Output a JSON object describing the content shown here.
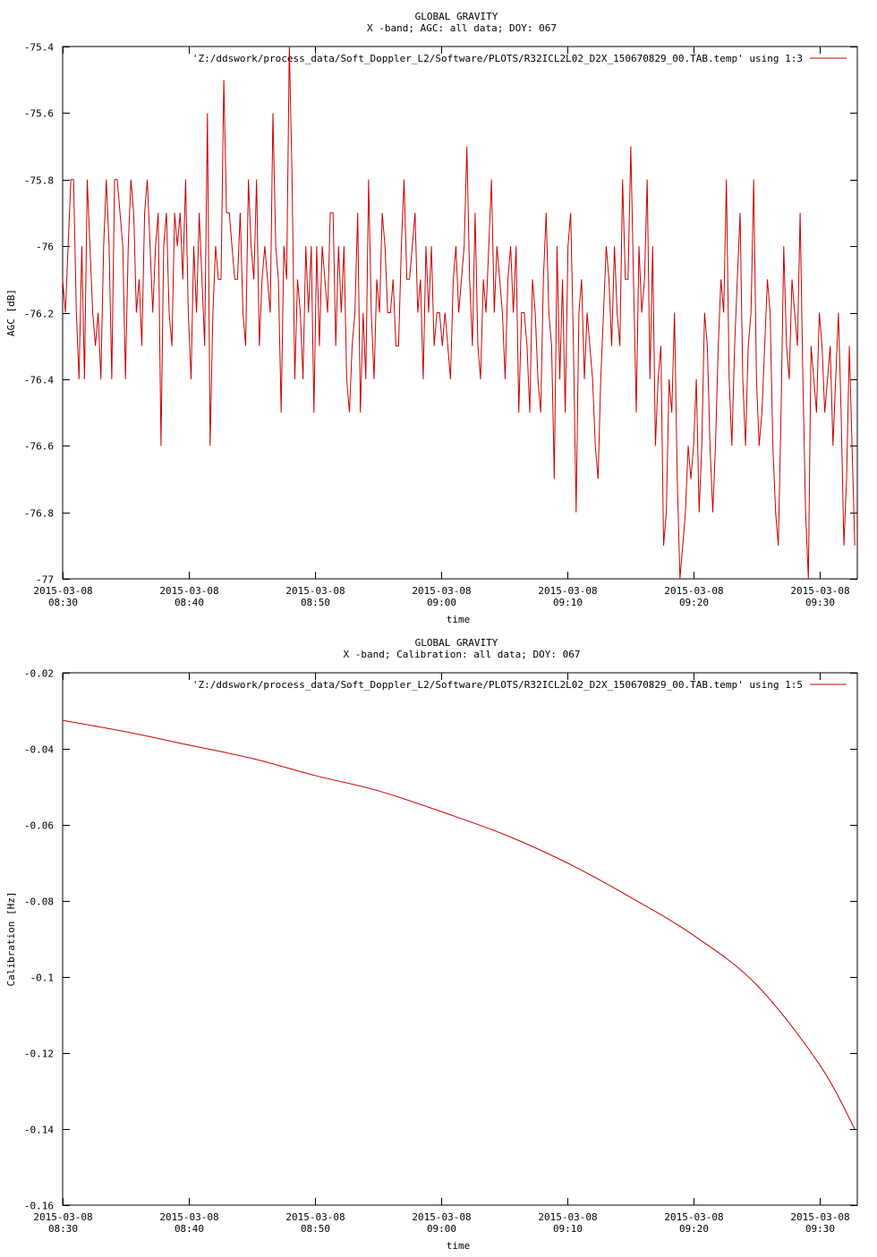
{
  "chart_data": [
    {
      "type": "line",
      "title": "GLOBAL GRAVITY",
      "subtitle": "X -band; AGC: all data; DOY: 067",
      "xlabel": "time",
      "ylabel": "AGC [dB]",
      "legend": "'Z:/ddswork/process_data/Soft_Doppler_L2/Software/PLOTS/R32ICL2L02_D2X_150670829_00.TAB.temp' using 1:3",
      "legend_position": "top-right",
      "line_color": "#cc0000",
      "xlim_minutes": [
        0,
        63
      ],
      "ylim": [
        -77,
        -75.4
      ],
      "yticks": [
        -75.4,
        -75.6,
        -75.8,
        -76,
        -76.2,
        -76.4,
        -76.6,
        -76.8,
        -77
      ],
      "ytick_labels": [
        "-75.4",
        "-75.6",
        "-75.8",
        "-76",
        "-76.2",
        "-76.4",
        "-76.6",
        "-76.8",
        "-77"
      ],
      "xtick_minutes": [
        0,
        10,
        20,
        30,
        40,
        50,
        60
      ],
      "xtick_labels": [
        [
          "2015-03-08",
          "08:30"
        ],
        [
          "2015-03-08",
          "08:40"
        ],
        [
          "2015-03-08",
          "08:50"
        ],
        [
          "2015-03-08",
          "09:00"
        ],
        [
          "2015-03-08",
          "09:10"
        ],
        [
          "2015-03-08",
          "09:20"
        ],
        [
          "2015-03-08",
          "09:30"
        ]
      ],
      "x_step_minutes": 0.1,
      "series": [
        {
          "values": [
            -76.1,
            -76.2,
            -76.0,
            -75.8,
            -75.8,
            -76.2,
            -76.4,
            -76.0,
            -76.4,
            -75.8,
            -76.0,
            -76.2,
            -76.3,
            -76.2,
            -76.4,
            -76.0,
            -75.8,
            -76.0,
            -76.4,
            -75.8,
            -75.8,
            -75.9,
            -76.0,
            -76.4,
            -76.0,
            -75.8,
            -75.9,
            -76.2,
            -76.1,
            -76.3,
            -75.9,
            -75.8,
            -76.0,
            -76.2,
            -76.0,
            -75.9,
            -76.6,
            -76.0,
            -75.9,
            -76.2,
            -76.3,
            -75.9,
            -76.0,
            -75.9,
            -76.1,
            -75.8,
            -76.2,
            -76.4,
            -76.0,
            -76.2,
            -75.9,
            -76.1,
            -76.3,
            -75.6,
            -76.6,
            -76.2,
            -76.0,
            -76.1,
            -76.1,
            -75.5,
            -75.9,
            -75.9,
            -76.0,
            -76.1,
            -76.1,
            -75.9,
            -76.2,
            -76.3,
            -75.8,
            -76.0,
            -76.1,
            -75.8,
            -76.3,
            -76.1,
            -76.0,
            -76.1,
            -76.2,
            -75.6,
            -76.0,
            -76.1,
            -76.5,
            -76.0,
            -76.1,
            -75.4,
            -75.8,
            -76.4,
            -76.1,
            -76.2,
            -76.4,
            -76.0,
            -76.2,
            -76.0,
            -76.5,
            -76.0,
            -76.3,
            -76.0,
            -76.1,
            -76.2,
            -75.9,
            -75.9,
            -76.3,
            -76.0,
            -76.2,
            -76.0,
            -76.4,
            -76.5,
            -76.3,
            -76.2,
            -75.9,
            -76.5,
            -76.2,
            -76.4,
            -75.8,
            -76.2,
            -76.4,
            -76.1,
            -76.2,
            -75.9,
            -76.0,
            -76.2,
            -76.2,
            -76.1,
            -76.3,
            -76.3,
            -76.0,
            -75.8,
            -76.1,
            -76.1,
            -76.0,
            -75.9,
            -76.2,
            -76.1,
            -76.4,
            -76.0,
            -76.2,
            -76.0,
            -76.3,
            -76.2,
            -76.2,
            -76.3,
            -76.2,
            -76.3,
            -76.4,
            -76.1,
            -76.0,
            -76.2,
            -76.1,
            -76.0,
            -75.7,
            -76.1,
            -76.3,
            -75.9,
            -76.3,
            -76.4,
            -76.1,
            -76.2,
            -76.0,
            -75.8,
            -76.2,
            -76.0,
            -76.1,
            -76.2,
            -76.4,
            -76.1,
            -76.0,
            -76.2,
            -76.0,
            -76.5,
            -76.2,
            -76.2,
            -76.3,
            -76.5,
            -76.1,
            -76.2,
            -76.4,
            -76.5,
            -76.1,
            -75.9,
            -76.2,
            -76.3,
            -76.7,
            -76.0,
            -76.4,
            -76.1,
            -76.5,
            -76.0,
            -75.9,
            -76.3,
            -76.8,
            -76.2,
            -76.1,
            -76.4,
            -76.2,
            -76.3,
            -76.4,
            -76.6,
            -76.7,
            -76.4,
            -76.2,
            -76.0,
            -76.1,
            -76.3,
            -76.0,
            -76.2,
            -76.3,
            -75.8,
            -76.1,
            -76.1,
            -75.7,
            -76.1,
            -76.5,
            -76.0,
            -76.2,
            -76.1,
            -75.8,
            -76.4,
            -76.0,
            -76.6,
            -76.4,
            -76.3,
            -76.9,
            -76.8,
            -76.4,
            -76.5,
            -76.2,
            -76.7,
            -77.0,
            -76.9,
            -76.8,
            -76.6,
            -76.7,
            -76.6,
            -76.4,
            -76.8,
            -76.6,
            -76.2,
            -76.3,
            -76.6,
            -76.8,
            -76.6,
            -76.3,
            -76.1,
            -76.2,
            -75.8,
            -76.4,
            -76.6,
            -76.3,
            -76.1,
            -75.9,
            -76.4,
            -76.6,
            -76.3,
            -76.2,
            -75.8,
            -76.4,
            -76.6,
            -76.5,
            -76.3,
            -76.1,
            -76.2,
            -76.6,
            -76.8,
            -76.9,
            -76.5,
            -76.0,
            -76.3,
            -76.4,
            -76.1,
            -76.2,
            -76.3,
            -75.9,
            -76.4,
            -76.8,
            -77.0,
            -76.3,
            -76.4,
            -76.5,
            -76.2,
            -76.3,
            -76.5,
            -76.4,
            -76.3,
            -76.6,
            -76.4,
            -76.2,
            -76.5,
            -76.9,
            -76.7,
            -76.3,
            -76.6,
            -76.9
          ]
        }
      ]
    },
    {
      "type": "line",
      "title": "GLOBAL GRAVITY",
      "subtitle": "X -band; Calibration: all data; DOY: 067",
      "xlabel": "time",
      "ylabel": "Calibration [Hz]",
      "legend": "'Z:/ddswork/process_data/Soft_Doppler_L2/Software/PLOTS/R32ICL2L02_D2X_150670829_00.TAB.temp' using 1:5",
      "legend_position": "top-right",
      "line_color": "#cc0000",
      "xlim_minutes": [
        0,
        63
      ],
      "ylim": [
        -0.16,
        -0.02
      ],
      "yticks": [
        -0.02,
        -0.04,
        -0.06,
        -0.08,
        -0.1,
        -0.12,
        -0.14,
        -0.16
      ],
      "ytick_labels": [
        "-0.02",
        "-0.04",
        "-0.06",
        "-0.08",
        "-0.1",
        "-0.12",
        "-0.14",
        "-0.16"
      ],
      "xtick_minutes": [
        0,
        10,
        20,
        30,
        40,
        50,
        60
      ],
      "xtick_labels": [
        [
          "2015-03-08",
          "08:30"
        ],
        [
          "2015-03-08",
          "08:40"
        ],
        [
          "2015-03-08",
          "08:50"
        ],
        [
          "2015-03-08",
          "09:00"
        ],
        [
          "2015-03-08",
          "09:10"
        ],
        [
          "2015-03-08",
          "09:20"
        ],
        [
          "2015-03-08",
          "09:30"
        ]
      ],
      "series": [
        {
          "x": [
            0,
            5,
            10,
            15,
            20,
            25,
            30,
            35,
            40,
            45,
            50,
            55,
            60,
            62.8
          ],
          "values": [
            -0.0325,
            -0.0355,
            -0.039,
            -0.0425,
            -0.047,
            -0.051,
            -0.0565,
            -0.0625,
            -0.07,
            -0.079,
            -0.089,
            -0.102,
            -0.123,
            -0.14
          ]
        }
      ]
    }
  ]
}
